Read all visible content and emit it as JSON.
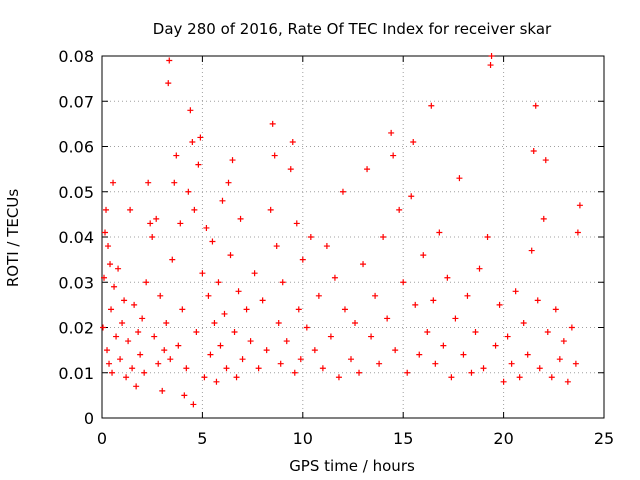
{
  "chart_data": {
    "type": "scatter",
    "title": "Day 280 of 2016, Rate Of TEC Index for receiver skar",
    "xlabel": "GPS time / hours",
    "ylabel": "ROTI / TECUs",
    "xlim": [
      0,
      25
    ],
    "ylim": [
      0,
      0.08
    ],
    "xticks": [
      0,
      5,
      10,
      15,
      20,
      25
    ],
    "xtick_labels": [
      "0",
      "5",
      "10",
      "15",
      "20",
      "25"
    ],
    "yticks": [
      0,
      0.01,
      0.02,
      0.03,
      0.04,
      0.05,
      0.06,
      0.07,
      0.08
    ],
    "ytick_labels": [
      "0",
      "0.01",
      "0.02",
      "0.03",
      "0.04",
      "0.05",
      "0.06",
      "0.07",
      "0.08"
    ],
    "grid": true,
    "marker": "+",
    "marker_color": "#ff0000",
    "series": [
      {
        "name": "ROTI",
        "points": [
          [
            0.05,
            0.02
          ],
          [
            0.1,
            0.031
          ],
          [
            0.15,
            0.041
          ],
          [
            0.2,
            0.046
          ],
          [
            0.25,
            0.015
          ],
          [
            0.3,
            0.038
          ],
          [
            0.35,
            0.012
          ],
          [
            0.4,
            0.034
          ],
          [
            0.45,
            0.024
          ],
          [
            0.5,
            0.01
          ],
          [
            0.55,
            0.052
          ],
          [
            0.6,
            0.029
          ],
          [
            0.7,
            0.018
          ],
          [
            0.8,
            0.033
          ],
          [
            0.9,
            0.013
          ],
          [
            1.0,
            0.021
          ],
          [
            1.1,
            0.026
          ],
          [
            1.2,
            0.009
          ],
          [
            1.3,
            0.017
          ],
          [
            1.4,
            0.046
          ],
          [
            1.5,
            0.011
          ],
          [
            1.6,
            0.025
          ],
          [
            1.7,
            0.007
          ],
          [
            1.8,
            0.019
          ],
          [
            1.9,
            0.014
          ],
          [
            2.0,
            0.022
          ],
          [
            2.1,
            0.01
          ],
          [
            2.2,
            0.03
          ],
          [
            2.3,
            0.052
          ],
          [
            2.4,
            0.043
          ],
          [
            2.5,
            0.04
          ],
          [
            2.6,
            0.018
          ],
          [
            2.7,
            0.044
          ],
          [
            2.8,
            0.012
          ],
          [
            2.9,
            0.027
          ],
          [
            3.0,
            0.006
          ],
          [
            3.1,
            0.015
          ],
          [
            3.2,
            0.021
          ],
          [
            3.3,
            0.074
          ],
          [
            3.35,
            0.079
          ],
          [
            3.4,
            0.013
          ],
          [
            3.5,
            0.035
          ],
          [
            3.6,
            0.052
          ],
          [
            3.7,
            0.058
          ],
          [
            3.8,
            0.016
          ],
          [
            3.9,
            0.043
          ],
          [
            4.0,
            0.024
          ],
          [
            4.1,
            0.005
          ],
          [
            4.2,
            0.011
          ],
          [
            4.3,
            0.05
          ],
          [
            4.4,
            0.068
          ],
          [
            4.5,
            0.061
          ],
          [
            4.55,
            0.003
          ],
          [
            4.6,
            0.046
          ],
          [
            4.7,
            0.019
          ],
          [
            4.8,
            0.056
          ],
          [
            4.9,
            0.062
          ],
          [
            5.0,
            0.032
          ],
          [
            5.1,
            0.009
          ],
          [
            5.2,
            0.042
          ],
          [
            5.3,
            0.027
          ],
          [
            5.4,
            0.014
          ],
          [
            5.5,
            0.039
          ],
          [
            5.6,
            0.021
          ],
          [
            5.7,
            0.008
          ],
          [
            5.8,
            0.03
          ],
          [
            5.9,
            0.016
          ],
          [
            6.0,
            0.048
          ],
          [
            6.1,
            0.023
          ],
          [
            6.2,
            0.011
          ],
          [
            6.3,
            0.052
          ],
          [
            6.4,
            0.036
          ],
          [
            6.5,
            0.057
          ],
          [
            6.6,
            0.019
          ],
          [
            6.7,
            0.009
          ],
          [
            6.8,
            0.028
          ],
          [
            6.9,
            0.044
          ],
          [
            7.0,
            0.013
          ],
          [
            7.2,
            0.024
          ],
          [
            7.4,
            0.017
          ],
          [
            7.6,
            0.032
          ],
          [
            7.8,
            0.011
          ],
          [
            8.0,
            0.026
          ],
          [
            8.2,
            0.015
          ],
          [
            8.4,
            0.046
          ],
          [
            8.5,
            0.065
          ],
          [
            8.6,
            0.058
          ],
          [
            8.7,
            0.038
          ],
          [
            8.8,
            0.021
          ],
          [
            8.9,
            0.012
          ],
          [
            9.0,
            0.03
          ],
          [
            9.2,
            0.017
          ],
          [
            9.4,
            0.055
          ],
          [
            9.5,
            0.061
          ],
          [
            9.6,
            0.01
          ],
          [
            9.7,
            0.043
          ],
          [
            9.8,
            0.024
          ],
          [
            9.9,
            0.013
          ],
          [
            10.0,
            0.035
          ],
          [
            10.2,
            0.02
          ],
          [
            10.4,
            0.04
          ],
          [
            10.6,
            0.015
          ],
          [
            10.8,
            0.027
          ],
          [
            11.0,
            0.011
          ],
          [
            11.2,
            0.038
          ],
          [
            11.4,
            0.018
          ],
          [
            11.6,
            0.031
          ],
          [
            11.8,
            0.009
          ],
          [
            12.0,
            0.05
          ],
          [
            12.1,
            0.024
          ],
          [
            12.4,
            0.013
          ],
          [
            12.6,
            0.021
          ],
          [
            12.8,
            0.01
          ],
          [
            13.0,
            0.034
          ],
          [
            13.2,
            0.055
          ],
          [
            13.4,
            0.018
          ],
          [
            13.6,
            0.027
          ],
          [
            13.8,
            0.012
          ],
          [
            14.0,
            0.04
          ],
          [
            14.2,
            0.022
          ],
          [
            14.4,
            0.063
          ],
          [
            14.5,
            0.058
          ],
          [
            14.6,
            0.015
          ],
          [
            14.8,
            0.046
          ],
          [
            15.0,
            0.03
          ],
          [
            15.2,
            0.01
          ],
          [
            15.4,
            0.049
          ],
          [
            15.5,
            0.061
          ],
          [
            15.6,
            0.025
          ],
          [
            15.8,
            0.014
          ],
          [
            16.0,
            0.036
          ],
          [
            16.2,
            0.019
          ],
          [
            16.4,
            0.069
          ],
          [
            16.5,
            0.026
          ],
          [
            16.6,
            0.012
          ],
          [
            16.8,
            0.041
          ],
          [
            17.0,
            0.016
          ],
          [
            17.2,
            0.031
          ],
          [
            17.4,
            0.009
          ],
          [
            17.6,
            0.022
          ],
          [
            17.8,
            0.053
          ],
          [
            18.0,
            0.014
          ],
          [
            18.2,
            0.027
          ],
          [
            18.4,
            0.01
          ],
          [
            18.6,
            0.019
          ],
          [
            18.8,
            0.033
          ],
          [
            19.0,
            0.011
          ],
          [
            19.2,
            0.04
          ],
          [
            19.35,
            0.078
          ],
          [
            19.4,
            0.08
          ],
          [
            19.6,
            0.016
          ],
          [
            19.8,
            0.025
          ],
          [
            20.0,
            0.008
          ],
          [
            20.2,
            0.018
          ],
          [
            20.4,
            0.012
          ],
          [
            20.6,
            0.028
          ],
          [
            20.8,
            0.009
          ],
          [
            21.0,
            0.021
          ],
          [
            21.2,
            0.014
          ],
          [
            21.4,
            0.037
          ],
          [
            21.5,
            0.059
          ],
          [
            21.6,
            0.069
          ],
          [
            21.7,
            0.026
          ],
          [
            21.8,
            0.011
          ],
          [
            22.0,
            0.044
          ],
          [
            22.1,
            0.057
          ],
          [
            22.2,
            0.019
          ],
          [
            22.4,
            0.009
          ],
          [
            22.6,
            0.024
          ],
          [
            22.8,
            0.013
          ],
          [
            23.0,
            0.017
          ],
          [
            23.2,
            0.008
          ],
          [
            23.4,
            0.02
          ],
          [
            23.6,
            0.012
          ],
          [
            23.7,
            0.041
          ],
          [
            23.8,
            0.047
          ]
        ]
      }
    ]
  }
}
